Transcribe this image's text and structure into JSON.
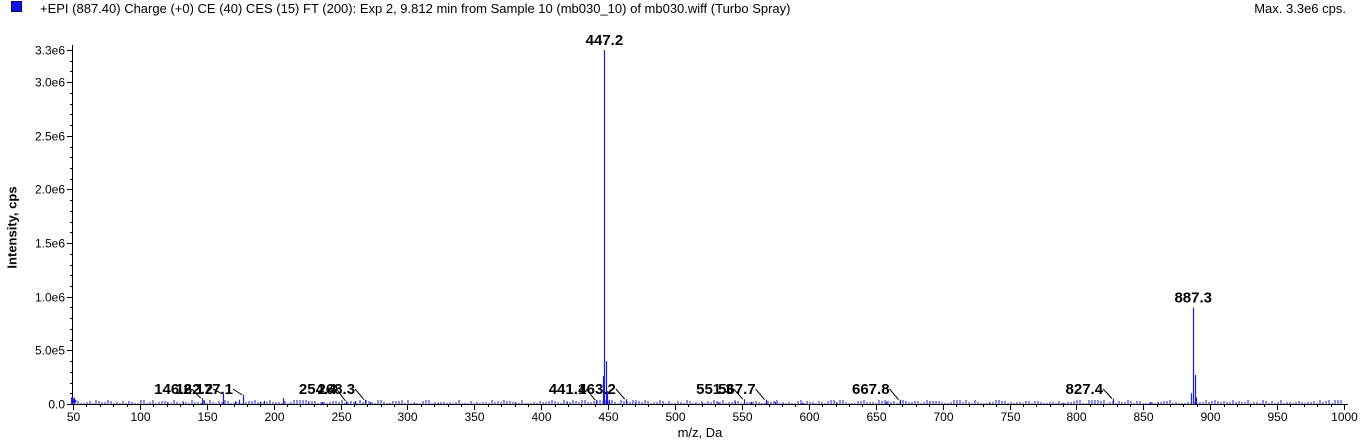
{
  "header": {
    "title": "+EPI (887.40) Charge (+0) CE (40) CES (15) FT (200): Exp 2, 9.812 min from Sample 10 (mb030_10) of mb030.wiff (Turbo Spray)",
    "max_label": "Max. 3.3e6 cps."
  },
  "colors": {
    "series": "#1a1adc",
    "axis": "#000000",
    "swatch": "#1010e0"
  },
  "chart_data": {
    "type": "bar",
    "xlabel": "m/z, Da",
    "ylabel": "Intensity, cps",
    "xlim": [
      50,
      1000
    ],
    "ylim": [
      0,
      3300000
    ],
    "x_ticks": [
      50,
      100,
      150,
      200,
      250,
      300,
      350,
      400,
      450,
      500,
      550,
      600,
      650,
      700,
      750,
      800,
      850,
      900,
      950,
      1000
    ],
    "y_ticks": [
      {
        "value": 0,
        "label": "0.0"
      },
      {
        "value": 500000,
        "label": "5.0e5"
      },
      {
        "value": 1000000,
        "label": "1.0e6"
      },
      {
        "value": 1500000,
        "label": "1.5e6"
      },
      {
        "value": 2000000,
        "label": "2.0e6"
      },
      {
        "value": 2500000,
        "label": "2.5e6"
      },
      {
        "value": 3000000,
        "label": "3.0e6"
      },
      {
        "value": 3300000,
        "label": "3.3e6"
      }
    ],
    "peaks": [
      {
        "mz": 50.5,
        "intensity": 60000
      },
      {
        "mz": 120.0,
        "intensity": 15000
      },
      {
        "mz": 132.0,
        "intensity": 14000
      },
      {
        "mz": 146.2,
        "intensity": 55000,
        "label": "146.2"
      },
      {
        "mz": 148.0,
        "intensity": 30000
      },
      {
        "mz": 162.2,
        "intensity": 95000,
        "label": "162.2"
      },
      {
        "mz": 171.0,
        "intensity": 25000
      },
      {
        "mz": 174.0,
        "intensity": 40000
      },
      {
        "mz": 177.1,
        "intensity": 85000,
        "label": "177.1"
      },
      {
        "mz": 190.0,
        "intensity": 22000
      },
      {
        "mz": 193.0,
        "intensity": 30000
      },
      {
        "mz": 207.0,
        "intensity": 55000
      },
      {
        "mz": 226.0,
        "intensity": 14000
      },
      {
        "mz": 236.0,
        "intensity": 18000
      },
      {
        "mz": 254.4,
        "intensity": 25000,
        "label": "254.4"
      },
      {
        "mz": 261.0,
        "intensity": 28000
      },
      {
        "mz": 268.3,
        "intensity": 40000,
        "label": "268.3"
      },
      {
        "mz": 272.0,
        "intensity": 15000
      },
      {
        "mz": 286.0,
        "intensity": 10000
      },
      {
        "mz": 305.0,
        "intensity": 15000
      },
      {
        "mz": 323.0,
        "intensity": 12000
      },
      {
        "mz": 380.0,
        "intensity": 12000
      },
      {
        "mz": 419.0,
        "intensity": 14000
      },
      {
        "mz": 441.1,
        "intensity": 35000,
        "label": "441.1"
      },
      {
        "mz": 446.2,
        "intensity": 260000
      },
      {
        "mz": 447.2,
        "intensity": 3300000,
        "label": "447.2"
      },
      {
        "mz": 448.2,
        "intensity": 400000
      },
      {
        "mz": 449.2,
        "intensity": 120000
      },
      {
        "mz": 451.0,
        "intensity": 40000
      },
      {
        "mz": 463.2,
        "intensity": 45000,
        "label": "463.2"
      },
      {
        "mz": 470.0,
        "intensity": 12000
      },
      {
        "mz": 520.0,
        "intensity": 12000
      },
      {
        "mz": 532.0,
        "intensity": 15000
      },
      {
        "mz": 545.0,
        "intensity": 20000
      },
      {
        "mz": 551.3,
        "intensity": 45000,
        "label": "551.3"
      },
      {
        "mz": 557.0,
        "intensity": 20000
      },
      {
        "mz": 567.7,
        "intensity": 40000,
        "label": "567.7"
      },
      {
        "mz": 575.0,
        "intensity": 20000
      },
      {
        "mz": 595.0,
        "intensity": 12000
      },
      {
        "mz": 620.0,
        "intensity": 12000
      },
      {
        "mz": 658.0,
        "intensity": 20000
      },
      {
        "mz": 667.8,
        "intensity": 40000,
        "label": "667.8"
      },
      {
        "mz": 690.0,
        "intensity": 12000
      },
      {
        "mz": 735.0,
        "intensity": 10000
      },
      {
        "mz": 790.0,
        "intensity": 12000
      },
      {
        "mz": 827.4,
        "intensity": 50000,
        "label": "827.4"
      },
      {
        "mz": 855.0,
        "intensity": 18000
      },
      {
        "mz": 861.0,
        "intensity": 12000
      },
      {
        "mz": 886.0,
        "intensity": 100000
      },
      {
        "mz": 887.3,
        "intensity": 900000,
        "label": "887.3"
      },
      {
        "mz": 888.3,
        "intensity": 270000
      },
      {
        "mz": 889.3,
        "intensity": 60000
      }
    ]
  }
}
